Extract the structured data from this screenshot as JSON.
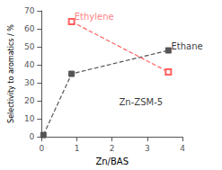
{
  "chart_data": {
    "type": "line",
    "xlabel": "Zn/BAS",
    "ylabel": "Selectivity to aromatics / %",
    "xlim": [
      0,
      4
    ],
    "ylim": [
      0,
      70
    ],
    "xticks": [
      0,
      1,
      2,
      3,
      4
    ],
    "yticks": [
      0,
      10,
      20,
      30,
      40,
      50,
      60,
      70
    ],
    "grid": false,
    "series": [
      {
        "color": "#555555",
        "x": [
          0.05,
          0.85,
          3.6
        ],
        "values": [
          1,
          35,
          48
        ],
        "marker": "square",
        "line_style": "dashed"
      },
      {
        "color": "#ff6060",
        "x": [
          0.85,
          3.6
        ],
        "values": [
          64,
          36
        ],
        "marker": "square-open",
        "line_style": "dashed"
      }
    ],
    "annotations": [
      {
        "text": "Ethylene",
        "x": 0.93,
        "y": 64.5,
        "color": "#ff6060"
      },
      {
        "text": "Ethane",
        "x": 3.68,
        "y": 48
      },
      {
        "text": "Zn-ZSM-5",
        "x": 2.2,
        "y": 17
      }
    ]
  }
}
